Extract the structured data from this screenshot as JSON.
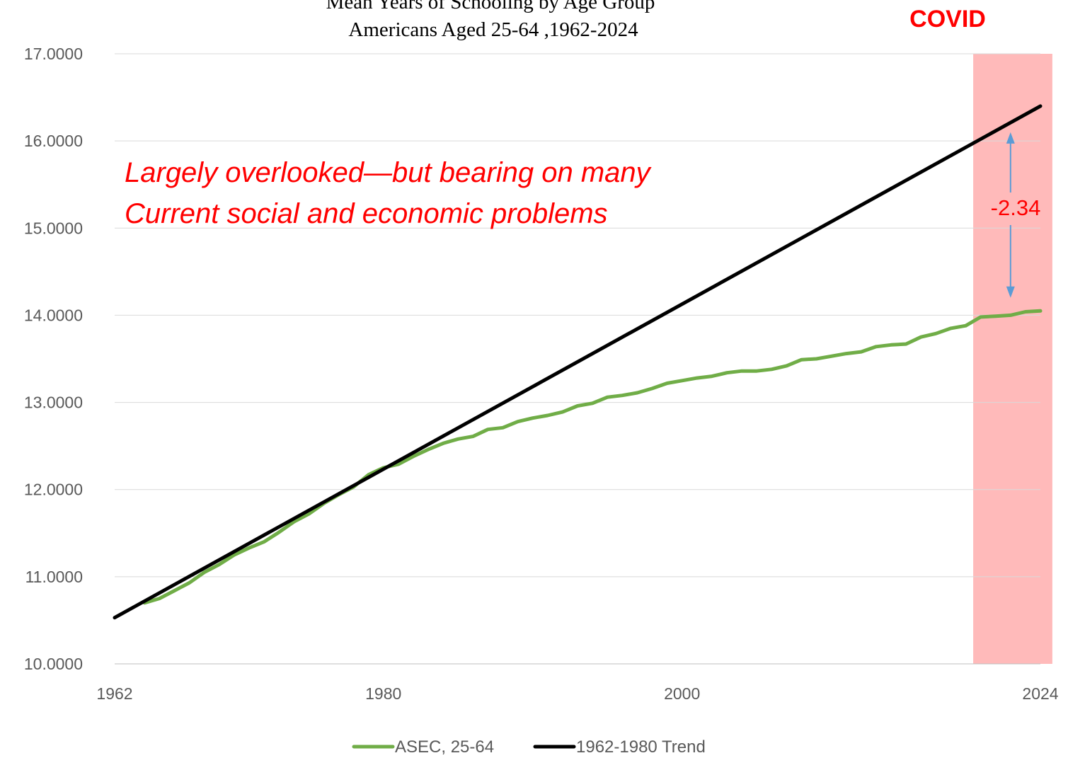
{
  "chart_data": {
    "type": "line",
    "title": "Mean Years of Schooling by Age Group",
    "subtitle": "Americans Aged 25-64 ,1962-2024",
    "xlabel": "",
    "ylabel": "",
    "xlim": [
      1962,
      2024
    ],
    "ylim": [
      10,
      17
    ],
    "x_ticks": [
      "1962",
      "1980",
      "2000",
      "2024"
    ],
    "y_ticks": [
      "10.0000",
      "11.0000",
      "12.0000",
      "13.0000",
      "14.0000",
      "15.0000",
      "16.0000",
      "17.0000"
    ],
    "grid": "horizontal",
    "legend_position": "bottom",
    "covid_band": {
      "label": "COVID",
      "start": 2019.5,
      "end": 2024.8,
      "color": "#ffb3b3"
    },
    "gap": {
      "label": "-2.34",
      "x": 2022,
      "y_top": 16.1,
      "y_bottom": 14.2,
      "color": "#5b9bd5"
    },
    "annotation_lines": [
      "Largely overlooked—but bearing on many",
      "Current social and economic problems"
    ],
    "series": [
      {
        "name": "ASEC, 25-64",
        "color": "#70ad47",
        "x": [
          1964,
          1965,
          1966,
          1967,
          1968,
          1969,
          1970,
          1971,
          1972,
          1973,
          1974,
          1975,
          1976,
          1977,
          1978,
          1979,
          1980,
          1981,
          1982,
          1983,
          1984,
          1985,
          1986,
          1987,
          1988,
          1989,
          1990,
          1991,
          1992,
          1993,
          1994,
          1995,
          1996,
          1997,
          1998,
          1999,
          2000,
          2001,
          2002,
          2003,
          2004,
          2005,
          2006,
          2007,
          2008,
          2009,
          2010,
          2011,
          2012,
          2013,
          2014,
          2015,
          2016,
          2017,
          2018,
          2019,
          2020,
          2021,
          2022,
          2023,
          2024
        ],
        "values": [
          10.7,
          10.75,
          10.84,
          10.93,
          11.05,
          11.14,
          11.25,
          11.33,
          11.4,
          11.51,
          11.63,
          11.72,
          11.84,
          11.94,
          12.03,
          12.17,
          12.25,
          12.29,
          12.38,
          12.46,
          12.53,
          12.58,
          12.61,
          12.69,
          12.71,
          12.78,
          12.82,
          12.85,
          12.89,
          12.96,
          12.99,
          13.06,
          13.08,
          13.11,
          13.16,
          13.22,
          13.25,
          13.28,
          13.3,
          13.34,
          13.36,
          13.36,
          13.38,
          13.42,
          13.49,
          13.5,
          13.53,
          13.56,
          13.58,
          13.64,
          13.66,
          13.67,
          13.75,
          13.79,
          13.85,
          13.88,
          13.98,
          13.99,
          14.0,
          14.04,
          14.05
        ]
      },
      {
        "name": "1962-1980 Trend",
        "color": "#000000",
        "x": [
          1962,
          2024
        ],
        "values": [
          10.53,
          16.4
        ]
      }
    ]
  }
}
